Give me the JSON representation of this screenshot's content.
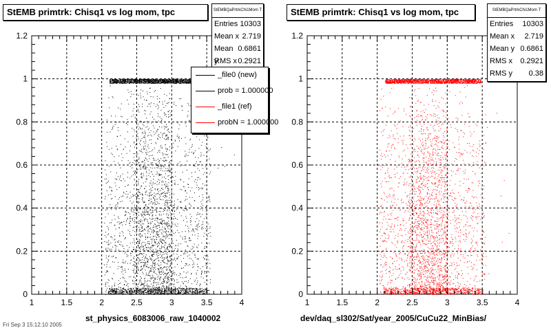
{
  "panels": [
    {
      "title": "StEMB primtrk: Chisq1 vs log mom, tpc",
      "stats": {
        "name": "StEMBQaPrtrkChi1Mom T",
        "rows": [
          {
            "label": "Entries",
            "value": "10303"
          },
          {
            "label": "Mean x",
            "value": "2.719"
          },
          {
            "label": "Mean y",
            "value": "0.6861"
          },
          {
            "label": "RMS x",
            "value": "0.2921"
          }
        ]
      },
      "legend": [
        {
          "label": "_file0 (new)",
          "color": "#000000"
        },
        {
          "label": "prob = 1.000000",
          "color": "#000000"
        },
        {
          "label": "_file1 (ref)",
          "color": "#ff0000"
        },
        {
          "label": "probN = 1.000000",
          "color": "#ff0000"
        }
      ],
      "xtitle": "st_physics_6083006_raw_1040002"
    },
    {
      "title": "StEMB primtrk: Chisq1 vs log mom, tpc",
      "stats": {
        "name": "StEMBQaPrtrkChi1Mom T",
        "rows": [
          {
            "label": "Entries",
            "value": "10303"
          },
          {
            "label": "Mean x",
            "value": "2.719"
          },
          {
            "label": "Mean y",
            "value": "0.6861"
          },
          {
            "label": "RMS x",
            "value": "0.2921"
          },
          {
            "label": "RMS y",
            "value": "0.38"
          }
        ]
      },
      "xtitle": "dev/daq_sl302/Sat/year_2005/CuCu22_MinBias/"
    }
  ],
  "footer": "Fri Sep 3 15:12:10 2005",
  "chart_data": [
    {
      "type": "scatter",
      "title": "StEMB primtrk: Chisq1 vs log mom, tpc",
      "xlabel": "st_physics_6083006_raw_1040002",
      "ylabel": "",
      "xlim": [
        1,
        4
      ],
      "ylim": [
        0,
        1.2
      ],
      "xticks": [
        "1",
        "1.5",
        "2",
        "2.5",
        "3",
        "3.5",
        "4"
      ],
      "yticks": [
        "0",
        "0.2",
        "0.4",
        "0.6",
        "0.8",
        "1",
        "1.2"
      ],
      "grid": true,
      "color": "#000000",
      "entries": 10303,
      "mean_x": 2.719,
      "mean_y": 0.6861,
      "rms_x": 0.2921,
      "x_range_of_points": [
        2.03,
        3.55
      ],
      "dense_band_y": [
        0.98,
        1.0
      ],
      "low_band_y": [
        0.0,
        0.03
      ]
    },
    {
      "type": "scatter",
      "title": "StEMB primtrk: Chisq1 vs log mom, tpc",
      "xlabel": "dev/daq_sl302/Sat/year_2005/CuCu22_MinBias/",
      "ylabel": "",
      "xlim": [
        1,
        4
      ],
      "ylim": [
        0,
        1.2
      ],
      "xticks": [
        "1",
        "1.5",
        "2",
        "2.5",
        "3",
        "3.5",
        "4"
      ],
      "yticks": [
        "0",
        "0.2",
        "0.4",
        "0.6",
        "0.8",
        "1",
        "1.2"
      ],
      "grid": true,
      "color": "#ff0000",
      "entries": 10303,
      "mean_x": 2.719,
      "mean_y": 0.6861,
      "rms_x": 0.2921,
      "rms_y": 0.38,
      "x_range_of_points": [
        2.03,
        3.55
      ],
      "dense_band_y": [
        0.98,
        1.0
      ],
      "low_band_y": [
        0.0,
        0.03
      ]
    }
  ]
}
